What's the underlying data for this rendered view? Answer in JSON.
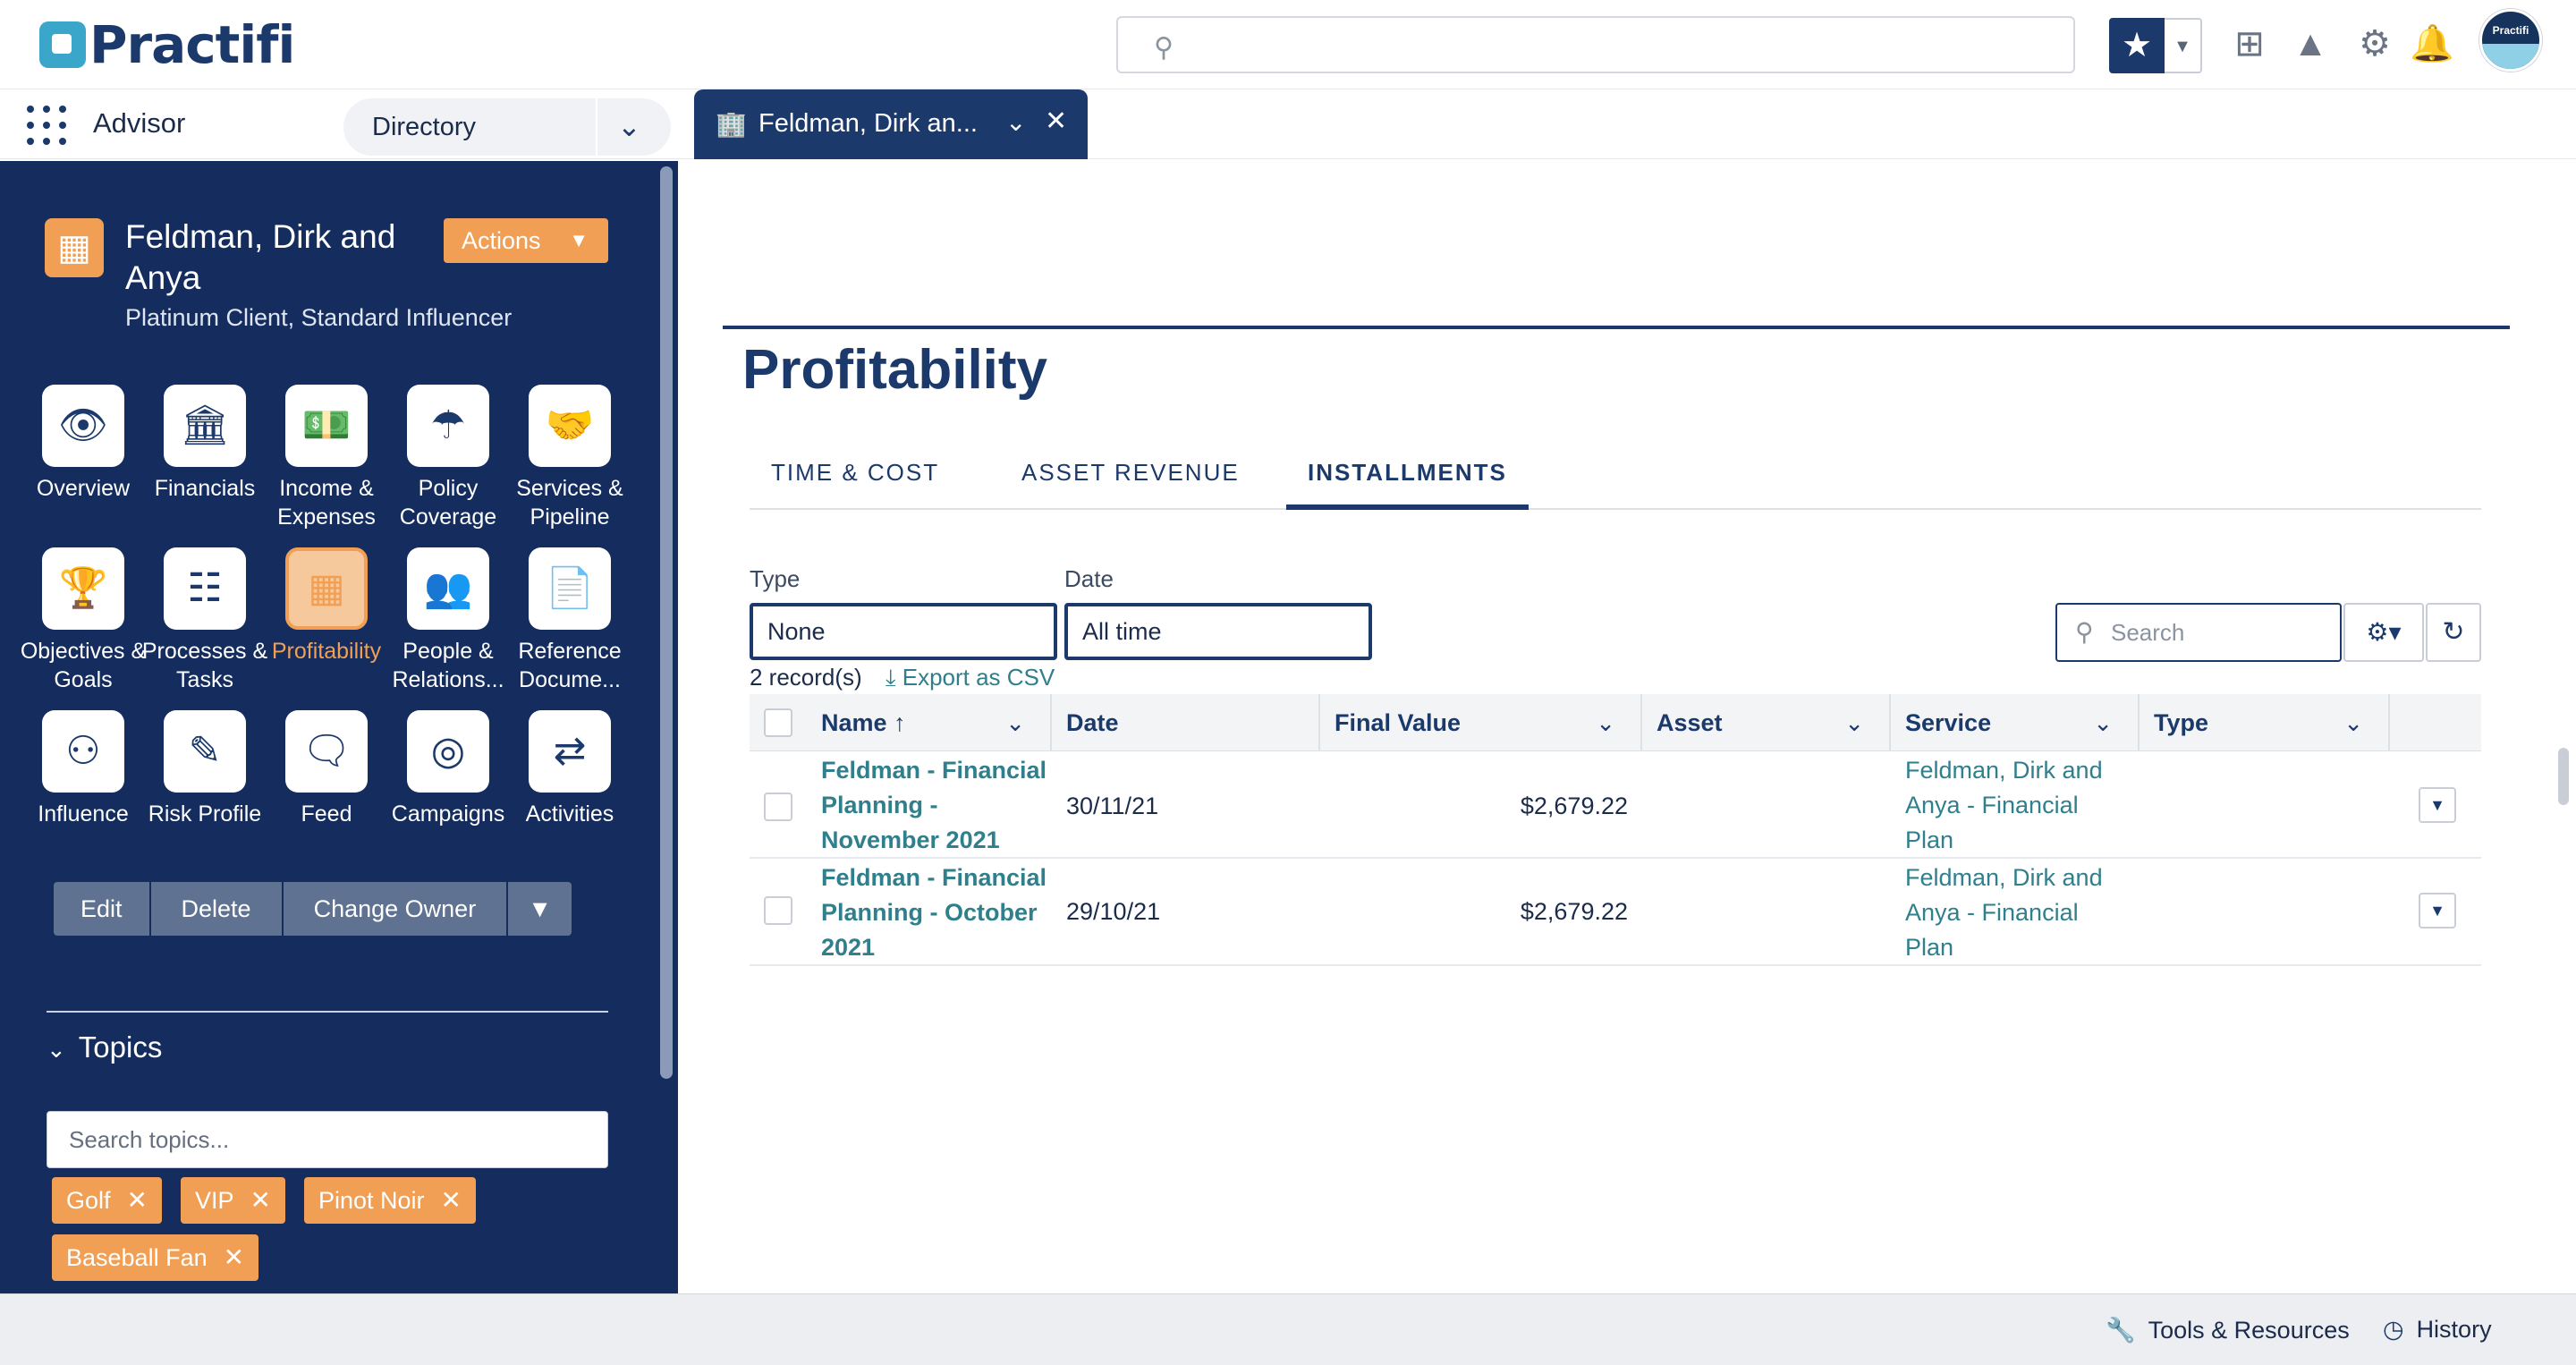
{
  "header": {
    "logo_text": "Practifi",
    "search_placeholder": "",
    "avatar_text": "Practifi"
  },
  "nav": {
    "app_name": "Advisor",
    "directory_label": "Directory",
    "record_tab_label": "Feldman, Dirk an..."
  },
  "record": {
    "name": "Feldman, Dirk and Anya",
    "subtitle": "Platinum Client, Standard Influencer",
    "actions_label": "Actions"
  },
  "sidebar_grid": [
    {
      "label": "Overview",
      "icon": "eye-icon"
    },
    {
      "label": "Financials",
      "icon": "bank-icon"
    },
    {
      "label": "Income & Expenses",
      "icon": "money-icon"
    },
    {
      "label": "Policy Coverage",
      "icon": "umbrella-icon"
    },
    {
      "label": "Services & Pipeline",
      "icon": "handshake-icon"
    },
    {
      "label": "Objectives & Goals",
      "icon": "trophy-icon"
    },
    {
      "label": "Processes & Tasks",
      "icon": "hierarchy-icon"
    },
    {
      "label": "Profitability",
      "icon": "abacus-icon",
      "active": true
    },
    {
      "label": "People & Relations...",
      "icon": "people-icon"
    },
    {
      "label": "Reference Docume...",
      "icon": "document-icon"
    },
    {
      "label": "Influence",
      "icon": "binoculars-icon"
    },
    {
      "label": "Risk Profile",
      "icon": "pencil-icon"
    },
    {
      "label": "Feed",
      "icon": "chat-icon"
    },
    {
      "label": "Campaigns",
      "icon": "target-icon"
    },
    {
      "label": "Activities",
      "icon": "arrows-icon"
    }
  ],
  "record_buttons": {
    "edit": "Edit",
    "delete": "Delete",
    "change_owner": "Change Owner"
  },
  "topics": {
    "header": "Topics",
    "search_placeholder": "Search topics...",
    "tags": [
      "Golf",
      "VIP",
      "Pinot Noir",
      "Baseball Fan"
    ]
  },
  "main": {
    "title": "Profitability",
    "tabs": [
      "TIME & COST",
      "ASSET REVENUE",
      "INSTALLMENTS"
    ],
    "active_tab": "INSTALLMENTS",
    "filters": {
      "type_label": "Type",
      "type_value": "None",
      "date_label": "Date",
      "date_value": "All time"
    },
    "search_placeholder": "Search",
    "record_count": "2 record(s)",
    "export_label": "Export as CSV",
    "columns": [
      "Name",
      "Date",
      "Final Value",
      "Asset",
      "Service",
      "Type"
    ],
    "rows": [
      {
        "name": "Feldman - Financial Planning - November 2021",
        "date": "30/11/21",
        "final_value": "$2,679.22",
        "asset": "",
        "service": "Feldman, Dirk and Anya - Financial Plan",
        "type": ""
      },
      {
        "name": "Feldman - Financial Planning - October 2021",
        "date": "29/10/21",
        "final_value": "$2,679.22",
        "asset": "",
        "service": "Feldman, Dirk and Anya - Financial Plan",
        "type": ""
      }
    ]
  },
  "footer": {
    "tools_label": "Tools & Resources",
    "history_label": "History"
  },
  "colors": {
    "navy": "#1b3a6b",
    "sidebar_bg": "#142d5e",
    "accent_orange": "#f19f55",
    "link_teal": "#2f7f8c"
  }
}
